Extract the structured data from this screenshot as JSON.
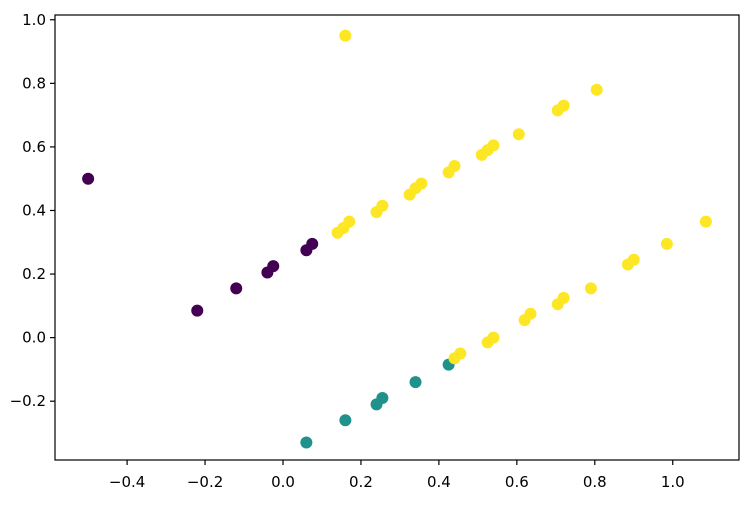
{
  "chart_data": {
    "type": "scatter",
    "title": "",
    "xlabel": "",
    "ylabel": "",
    "xlim": [
      -0.585,
      1.17
    ],
    "ylim": [
      -0.385,
      1.015
    ],
    "xticks": [
      -0.4,
      -0.2,
      0.0,
      0.2,
      0.4,
      0.6,
      0.8,
      1.0
    ],
    "xtick_labels": [
      "−0.4",
      "−0.2",
      "0.0",
      "0.2",
      "0.4",
      "0.6",
      "0.8",
      "1.0"
    ],
    "yticks": [
      -0.2,
      0.0,
      0.2,
      0.4,
      0.6,
      0.8,
      1.0
    ],
    "ytick_labels": [
      "−0.2",
      "0.0",
      "0.2",
      "0.4",
      "0.6",
      "0.8",
      "1.0"
    ],
    "grid": false,
    "legend": "none",
    "colors": {
      "purple": "#440154",
      "teal": "#21918c",
      "yellow": "#fde725"
    },
    "series": [
      {
        "color_key": "purple",
        "points": [
          [
            -0.5,
            0.5
          ],
          [
            -0.22,
            0.085
          ],
          [
            -0.12,
            0.155
          ],
          [
            -0.04,
            0.205
          ],
          [
            -0.025,
            0.225
          ],
          [
            0.06,
            0.275
          ],
          [
            0.075,
            0.295
          ]
        ]
      },
      {
        "color_key": "teal",
        "points": [
          [
            0.06,
            -0.33
          ],
          [
            0.16,
            -0.26
          ],
          [
            0.24,
            -0.21
          ],
          [
            0.255,
            -0.19
          ],
          [
            0.34,
            -0.14
          ],
          [
            0.425,
            -0.085
          ]
        ]
      },
      {
        "color_key": "yellow",
        "points": [
          [
            0.16,
            0.95
          ],
          [
            0.14,
            0.33
          ],
          [
            0.155,
            0.345
          ],
          [
            0.17,
            0.365
          ],
          [
            0.24,
            0.395
          ],
          [
            0.255,
            0.415
          ],
          [
            0.325,
            0.45
          ],
          [
            0.34,
            0.47
          ],
          [
            0.355,
            0.485
          ],
          [
            0.425,
            0.52
          ],
          [
            0.44,
            0.54
          ],
          [
            0.51,
            0.575
          ],
          [
            0.525,
            0.59
          ],
          [
            0.54,
            0.605
          ],
          [
            0.605,
            0.64
          ],
          [
            0.705,
            0.715
          ],
          [
            0.72,
            0.73
          ],
          [
            0.805,
            0.78
          ],
          [
            0.44,
            -0.065
          ],
          [
            0.455,
            -0.05
          ],
          [
            0.525,
            -0.015
          ],
          [
            0.54,
            0.0
          ],
          [
            0.62,
            0.055
          ],
          [
            0.635,
            0.075
          ],
          [
            0.705,
            0.105
          ],
          [
            0.72,
            0.125
          ],
          [
            0.79,
            0.155
          ],
          [
            0.885,
            0.23
          ],
          [
            0.9,
            0.245
          ],
          [
            0.985,
            0.295
          ],
          [
            1.085,
            0.365
          ]
        ]
      }
    ]
  }
}
